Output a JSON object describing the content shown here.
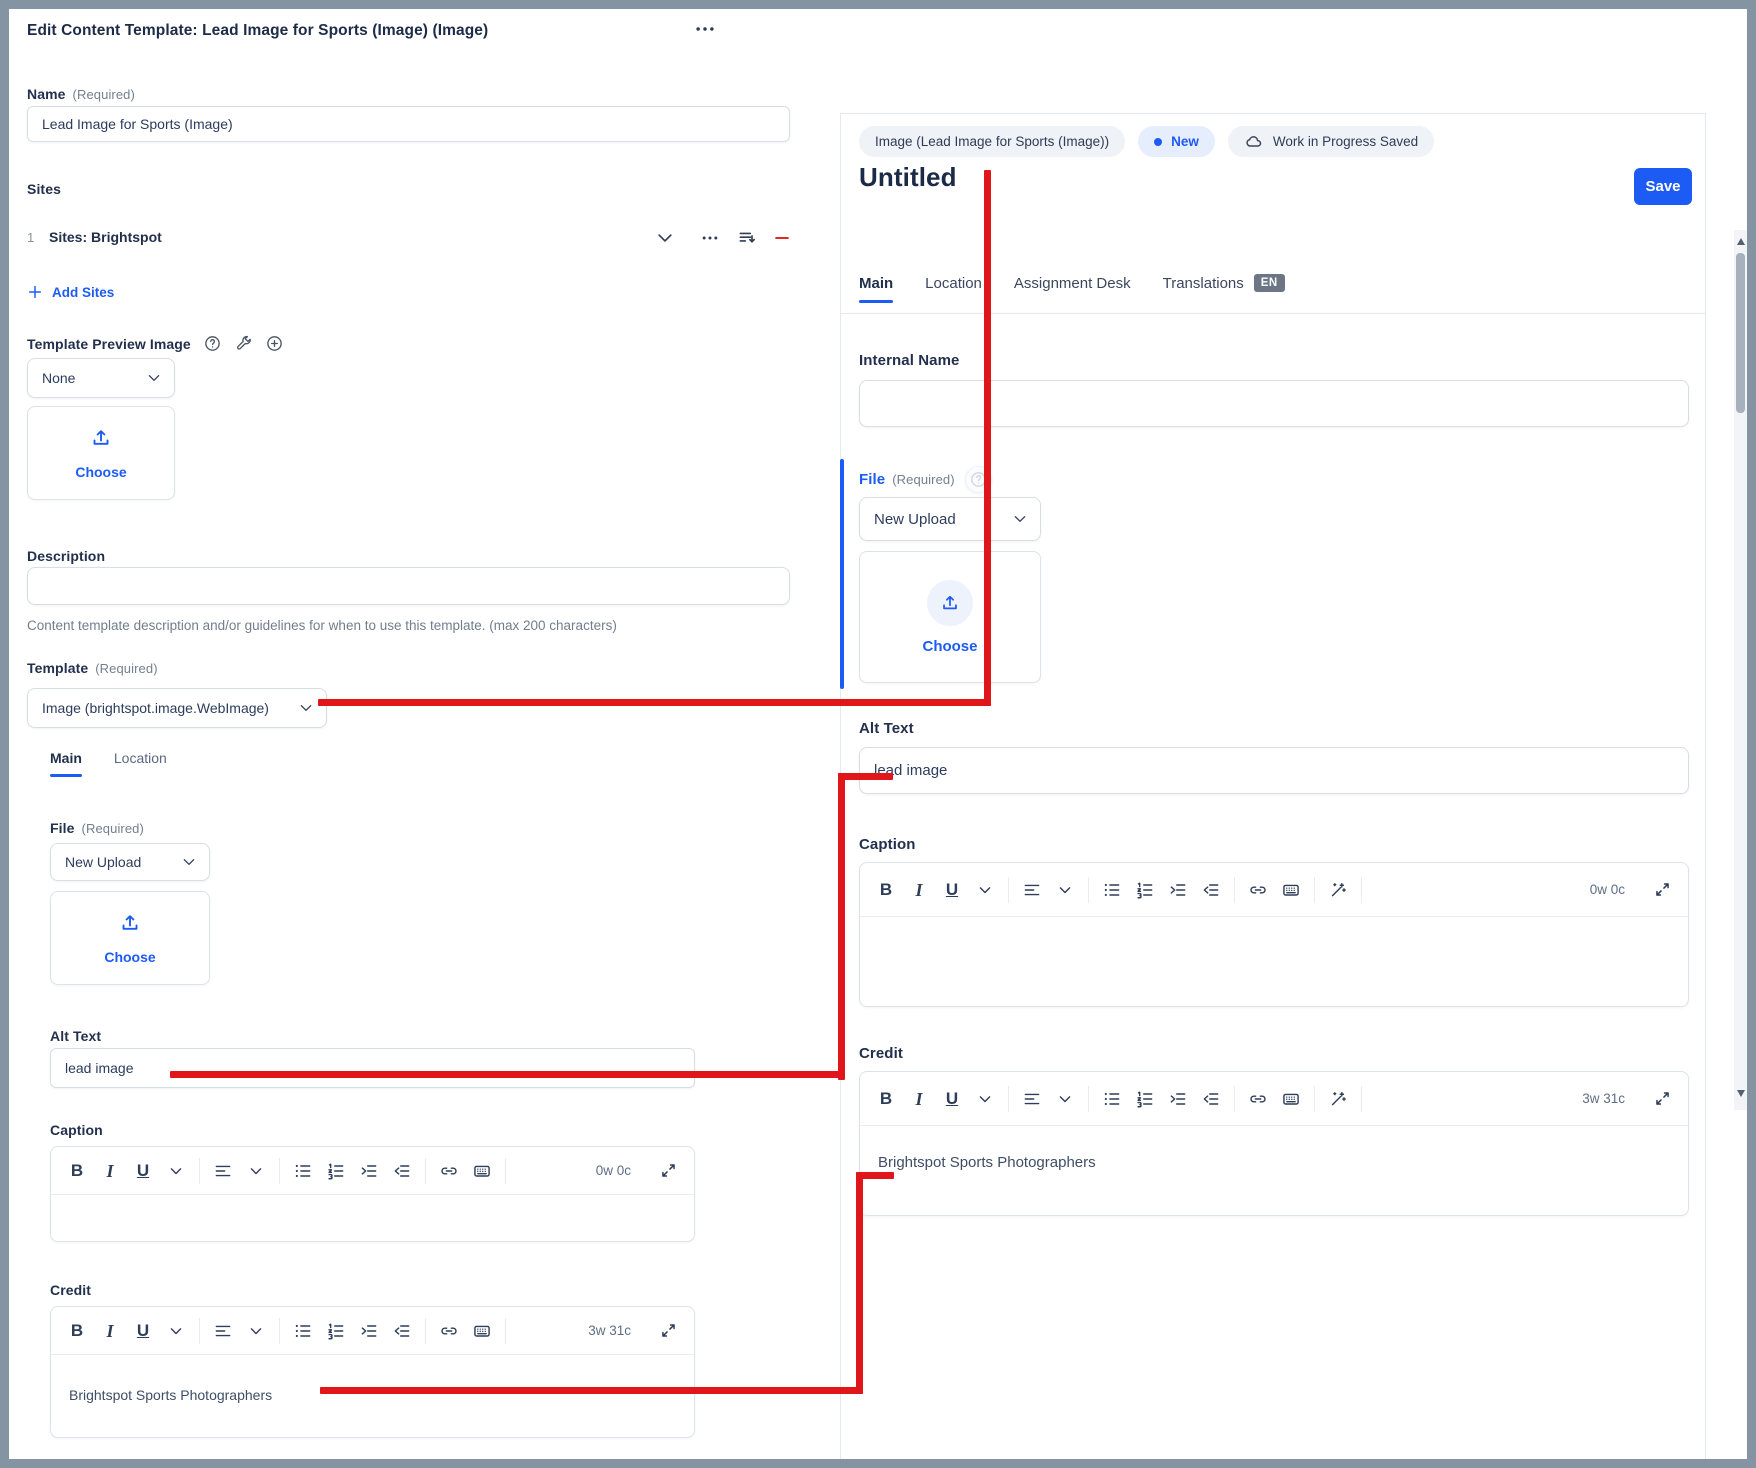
{
  "colors": {
    "accent_blue": "#1d5bf5",
    "annotation_red": "#e0161b",
    "frame_gray": "#8594a3",
    "status_new_bg": "#e6eefe",
    "chip_bg": "#eff2f6",
    "en_badge_bg": "#6d7684"
  },
  "left_panel": {
    "title": "Edit Content Template: Lead Image for Sports (Image) (Image)",
    "name_field": {
      "label": "Name",
      "required": "(Required)",
      "value": "Lead Image for Sports (Image)"
    },
    "sites": {
      "label": "Sites",
      "row_number": "1",
      "row_value": "Sites: Brightspot",
      "add_link": "Add Sites"
    },
    "template_preview_image": {
      "label": "Template Preview Image",
      "selected": "None",
      "choose_label": "Choose"
    },
    "description": {
      "label": "Description",
      "value": "",
      "help": "Content template description and/or guidelines for when to use this template. (max 200 characters)"
    },
    "template_field": {
      "label": "Template",
      "required": "(Required)",
      "selected": "Image (brightspot.image.WebImage)"
    },
    "tabs": [
      {
        "label": "Main"
      },
      {
        "label": "Location"
      }
    ],
    "file_field": {
      "label": "File",
      "required": "(Required)",
      "selected": "New Upload",
      "choose_label": "Choose"
    },
    "alt_text": {
      "label": "Alt Text",
      "value": "lead image"
    },
    "caption": {
      "label": "Caption",
      "counter": "0w 0c",
      "content": ""
    },
    "credit": {
      "label": "Credit",
      "counter": "3w 31c",
      "content": "Brightspot Sports Photographers"
    }
  },
  "right_panel": {
    "content_type_chip": "Image (Lead Image for Sports (Image))",
    "status_chip": "New",
    "workflow_chip": "Work in Progress Saved",
    "title": "Untitled",
    "save_button": "Save",
    "tabs": [
      {
        "label": "Main"
      },
      {
        "label": "Location"
      },
      {
        "label": "Assignment Desk"
      },
      {
        "label": "Translations",
        "badge": "EN"
      }
    ],
    "internal_name": {
      "label": "Internal Name",
      "value": ""
    },
    "file_field": {
      "label": "File",
      "required": "(Required)",
      "selected": "New Upload",
      "choose_label": "Choose"
    },
    "alt_text": {
      "label": "Alt Text",
      "value": "lead image"
    },
    "caption": {
      "label": "Caption",
      "counter": "0w 0c",
      "content": ""
    },
    "credit": {
      "label": "Credit",
      "counter": "3w 31c",
      "content": "Brightspot Sports Photographers"
    }
  },
  "rich_text_toolbar": {
    "basic_icons": [
      "bold",
      "italic",
      "underline",
      "chevron-down",
      "align-left",
      "chevron-down",
      "bullet-list",
      "numbered-list",
      "indent",
      "outdent",
      "link",
      "keyboard"
    ],
    "ai_icon": "magic-wand"
  }
}
